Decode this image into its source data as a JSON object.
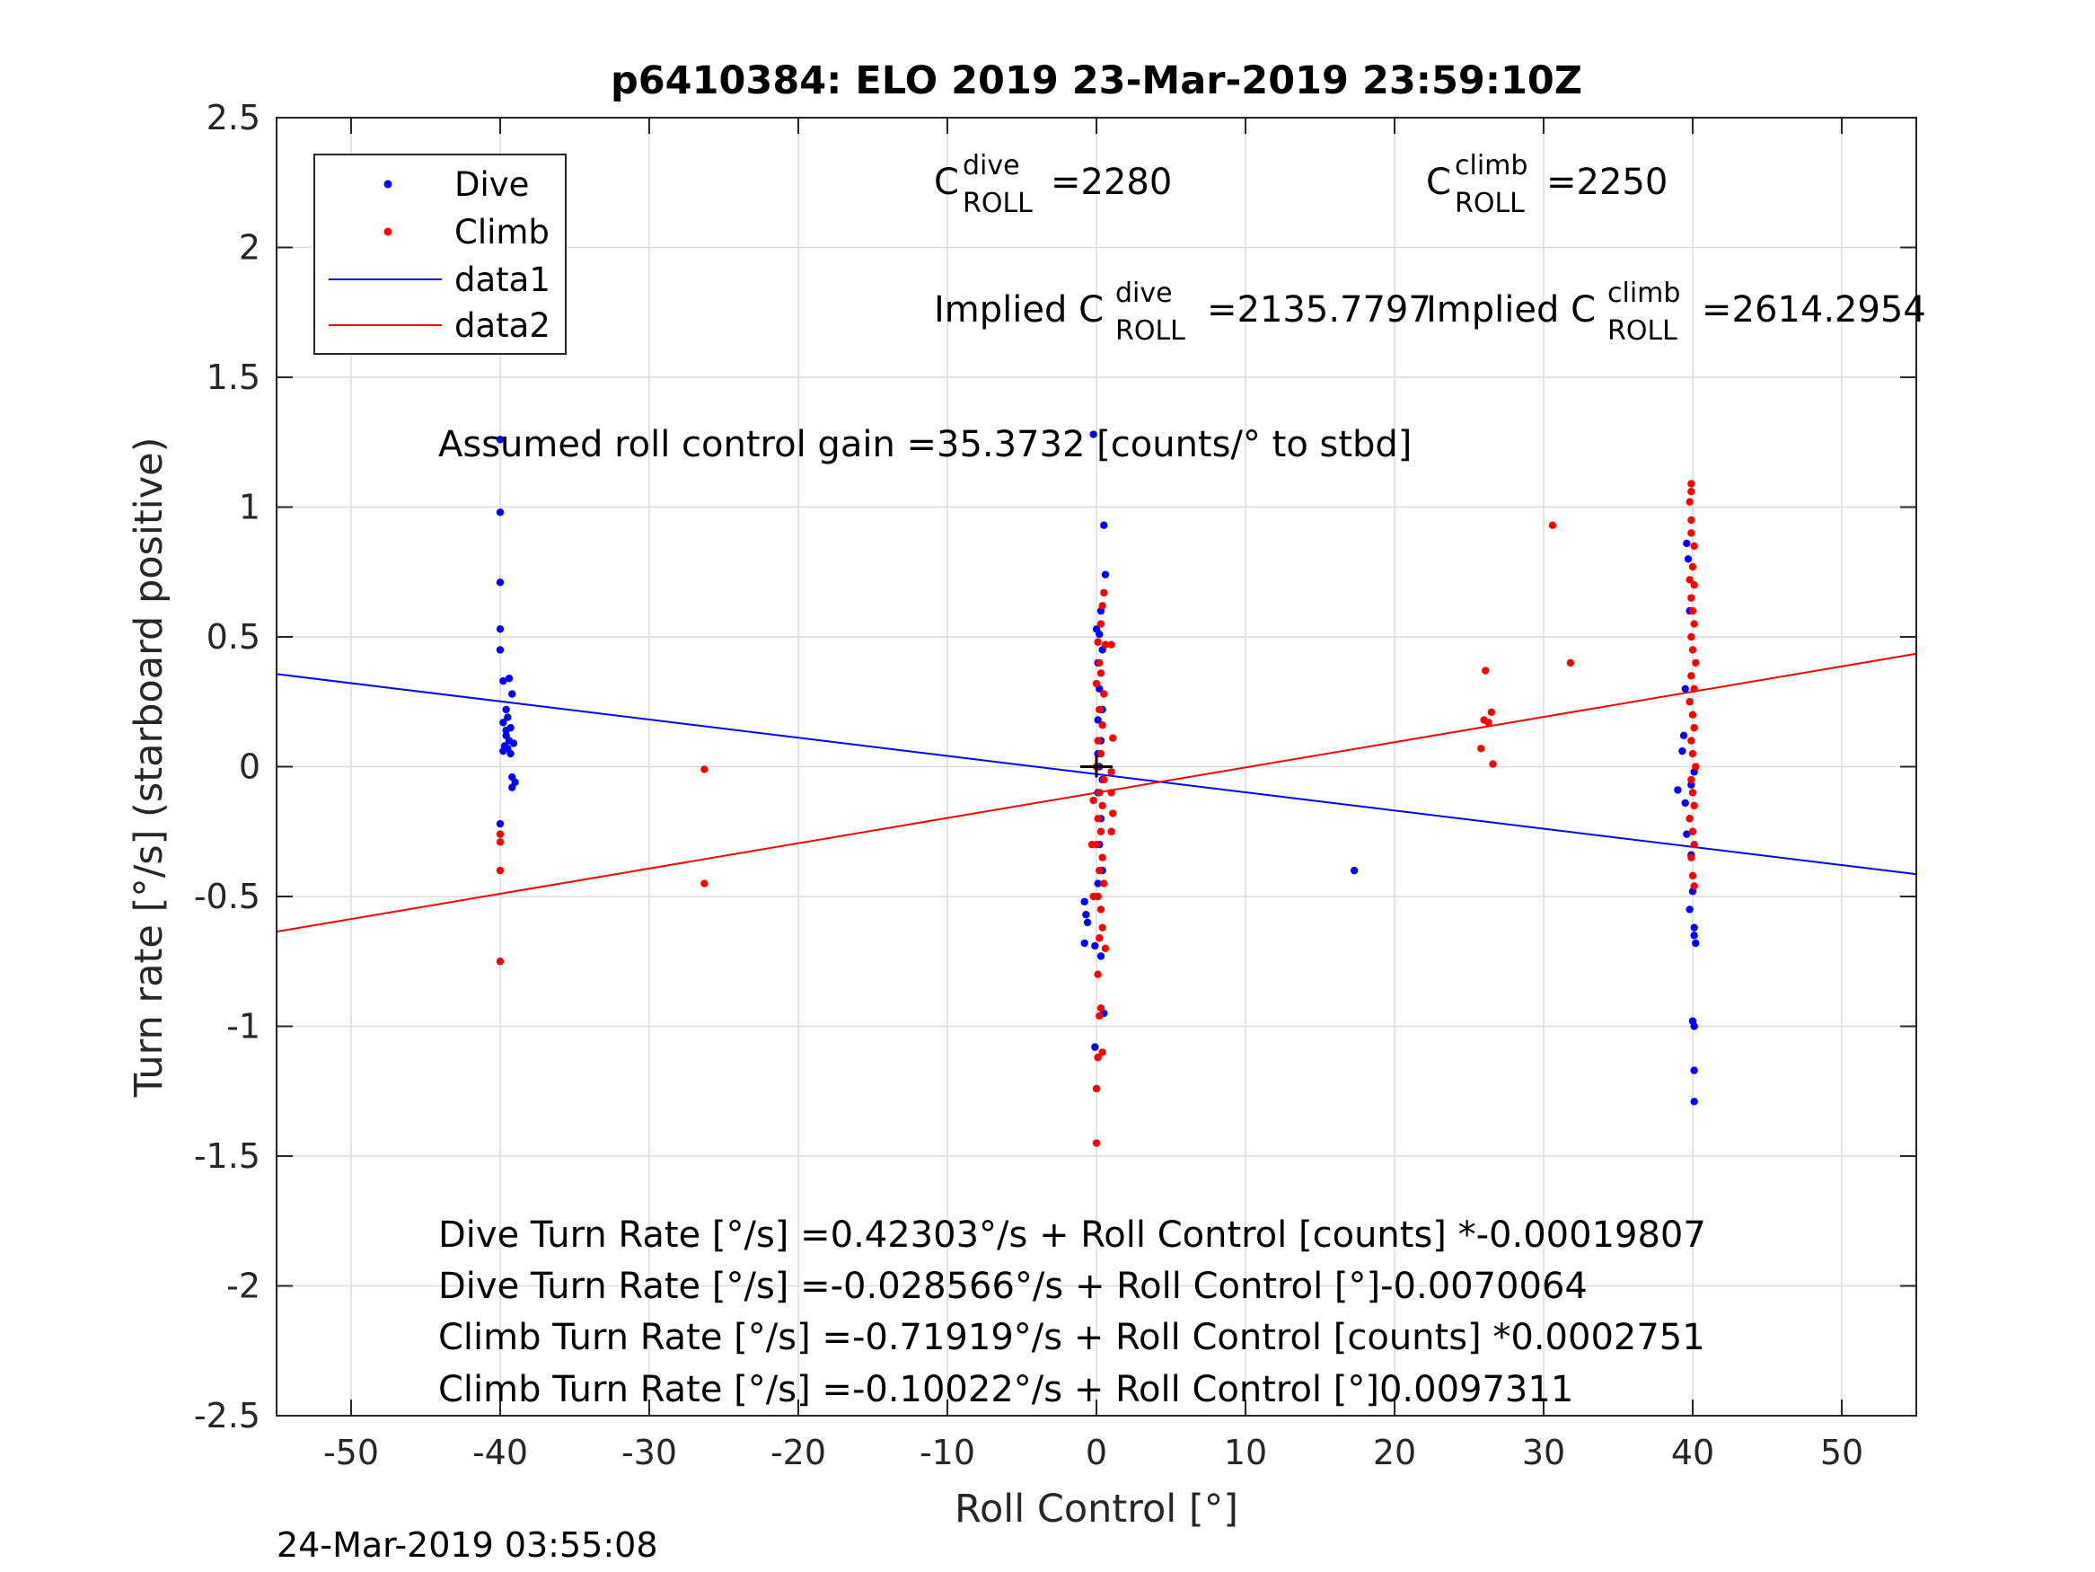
{
  "chart_data": {
    "type": "scatter",
    "title": "p6410384: ELO 2019 23-Mar-2019 23:59:10Z",
    "xlabel": "Roll Control [°]",
    "ylabel": "Turn rate [°/s] (starboard positive)",
    "xlim": [
      -55,
      55
    ],
    "ylim": [
      -2.5,
      2.5
    ],
    "xticks": [
      -50,
      -40,
      -30,
      -20,
      -10,
      0,
      10,
      20,
      30,
      40,
      50
    ],
    "yticks": [
      -2.5,
      -2,
      -1.5,
      -1,
      -0.5,
      0,
      0.5,
      1,
      1.5,
      2,
      2.5
    ],
    "grid": true,
    "legend_position": "top-left",
    "legend": [
      {
        "label": "Dive",
        "kind": "marker",
        "color": "#0000ff"
      },
      {
        "label": "Climb",
        "kind": "marker",
        "color": "#ff0000"
      },
      {
        "label": "data1",
        "kind": "line",
        "color": "#0000ff"
      },
      {
        "label": "data2",
        "kind": "line",
        "color": "#ff0000"
      }
    ],
    "series": [
      {
        "name": "Dive",
        "color": "#0000ff",
        "points": [
          [
            -40,
            1.26
          ],
          [
            -40,
            0.98
          ],
          [
            -40,
            0.71
          ],
          [
            -40,
            0.53
          ],
          [
            -40,
            0.45
          ],
          [
            -39.8,
            0.33
          ],
          [
            -39.4,
            0.34
          ],
          [
            -39.2,
            0.28
          ],
          [
            -39.6,
            0.22
          ],
          [
            -39.5,
            0.19
          ],
          [
            -39.8,
            0.17
          ],
          [
            -39.3,
            0.15
          ],
          [
            -39.6,
            0.12
          ],
          [
            -39.4,
            0.1
          ],
          [
            -39.1,
            0.09
          ],
          [
            -39.7,
            0.08
          ],
          [
            -39.5,
            0.07
          ],
          [
            -39.8,
            0.06
          ],
          [
            -39.3,
            0.05
          ],
          [
            -39.6,
            0.14
          ],
          [
            -39.2,
            -0.04
          ],
          [
            -39,
            -0.06
          ],
          [
            -39.2,
            -0.08
          ],
          [
            -40,
            -0.22
          ],
          [
            -0.8,
            -0.52
          ],
          [
            -0.7,
            -0.57
          ],
          [
            -0.6,
            -0.6
          ],
          [
            -0.8,
            -0.68
          ],
          [
            -0.1,
            -0.69
          ],
          [
            0.3,
            -0.73
          ],
          [
            0.5,
            -0.95
          ],
          [
            -0.1,
            -1.08
          ],
          [
            0.1,
            -1.12
          ],
          [
            0.5,
            0.93
          ],
          [
            0.6,
            0.74
          ],
          [
            0.3,
            0.6
          ],
          [
            0,
            0.53
          ],
          [
            0.2,
            0.51
          ],
          [
            0.4,
            0.45
          ],
          [
            0.1,
            0.4
          ],
          [
            0.2,
            0.3
          ],
          [
            0.4,
            0.22
          ],
          [
            0.1,
            0.18
          ],
          [
            0.3,
            0.1
          ],
          [
            0.1,
            0.05
          ],
          [
            0.2,
            0.0
          ],
          [
            0.4,
            -0.05
          ],
          [
            0.1,
            -0.1
          ],
          [
            0.3,
            -0.2
          ],
          [
            0.2,
            -0.3
          ],
          [
            0.4,
            -0.4
          ],
          [
            0.1,
            -0.45
          ],
          [
            -0.2,
            1.28
          ],
          [
            17.3,
            -0.4
          ],
          [
            39.6,
            0.86
          ],
          [
            39.7,
            0.8
          ],
          [
            39.8,
            0.6
          ],
          [
            39.5,
            0.3
          ],
          [
            39.4,
            0.12
          ],
          [
            39.3,
            0.06
          ],
          [
            39.0,
            -0.09
          ],
          [
            39.5,
            -0.14
          ],
          [
            39.8,
            -0.2
          ],
          [
            39.6,
            -0.26
          ],
          [
            39.9,
            -0.34
          ],
          [
            40.0,
            -0.48
          ],
          [
            39.8,
            -0.55
          ],
          [
            40.1,
            -0.62
          ],
          [
            40.1,
            -0.65
          ],
          [
            40.2,
            -0.68
          ],
          [
            40.0,
            -0.98
          ],
          [
            40.1,
            -1.0
          ],
          [
            40.1,
            -1.17
          ],
          [
            40.1,
            -1.29
          ],
          [
            39.9,
            -0.07
          ],
          [
            40.1,
            -0.02
          ]
        ]
      },
      {
        "name": "Climb",
        "color": "#ff0000",
        "points": [
          [
            -40,
            -0.26
          ],
          [
            -40,
            -0.29
          ],
          [
            -40,
            -0.4
          ],
          [
            -40,
            -0.75
          ],
          [
            -26.3,
            -0.01
          ],
          [
            -26.3,
            -0.45
          ],
          [
            0.5,
            0.67
          ],
          [
            0.4,
            0.62
          ],
          [
            0.3,
            0.55
          ],
          [
            0.1,
            0.48
          ],
          [
            0.6,
            0.47
          ],
          [
            0.2,
            0.4
          ],
          [
            0.3,
            0.36
          ],
          [
            0.0,
            0.32
          ],
          [
            0.5,
            0.28
          ],
          [
            0.2,
            0.22
          ],
          [
            0.4,
            0.16
          ],
          [
            0.1,
            0.1
          ],
          [
            0.3,
            0.05
          ],
          [
            0.0,
            0.0
          ],
          [
            0.5,
            -0.05
          ],
          [
            0.2,
            -0.1
          ],
          [
            0.4,
            -0.15
          ],
          [
            0.1,
            -0.2
          ],
          [
            0.3,
            -0.25
          ],
          [
            0.0,
            -0.3
          ],
          [
            0.4,
            -0.35
          ],
          [
            0.2,
            -0.4
          ],
          [
            0.5,
            -0.45
          ],
          [
            0.1,
            -0.5
          ],
          [
            0.3,
            -0.55
          ],
          [
            0.4,
            -0.62
          ],
          [
            0.2,
            -0.66
          ],
          [
            0.6,
            -0.7
          ],
          [
            0.1,
            -0.8
          ],
          [
            0.3,
            -0.93
          ],
          [
            0.2,
            -0.96
          ],
          [
            0.4,
            -1.1
          ],
          [
            0.1,
            -1.12
          ],
          [
            0.0,
            -1.24
          ],
          [
            0.0,
            -1.45
          ],
          [
            1.0,
            0.47
          ],
          [
            1.1,
            0.11
          ],
          [
            1.0,
            -0.02
          ],
          [
            1.0,
            -0.1
          ],
          [
            1.1,
            -0.18
          ],
          [
            1.0,
            -0.25
          ],
          [
            -0.2,
            -0.13
          ],
          [
            -0.3,
            -0.3
          ],
          [
            -0.2,
            -0.5
          ],
          [
            26.1,
            0.37
          ],
          [
            26.0,
            0.18
          ],
          [
            26.5,
            0.21
          ],
          [
            26.3,
            0.17
          ],
          [
            25.8,
            0.07
          ],
          [
            26.6,
            0.01
          ],
          [
            30.6,
            0.93
          ],
          [
            31.8,
            0.4
          ],
          [
            39.9,
            1.09
          ],
          [
            39.9,
            1.06
          ],
          [
            39.8,
            1.02
          ],
          [
            39.9,
            0.95
          ],
          [
            40.1,
            0.85
          ],
          [
            40.0,
            0.77
          ],
          [
            39.8,
            0.72
          ],
          [
            39.9,
            0.65
          ],
          [
            40.0,
            0.6
          ],
          [
            40.1,
            0.55
          ],
          [
            39.9,
            0.5
          ],
          [
            40.0,
            0.45
          ],
          [
            40.2,
            0.4
          ],
          [
            39.9,
            0.35
          ],
          [
            40.1,
            0.3
          ],
          [
            39.8,
            0.25
          ],
          [
            40.0,
            0.2
          ],
          [
            40.1,
            0.15
          ],
          [
            39.9,
            0.1
          ],
          [
            40.0,
            0.05
          ],
          [
            40.2,
            0.0
          ],
          [
            39.9,
            -0.05
          ],
          [
            40.0,
            -0.1
          ],
          [
            40.1,
            -0.15
          ],
          [
            39.8,
            -0.2
          ],
          [
            40.0,
            -0.25
          ],
          [
            40.1,
            -0.3
          ],
          [
            39.9,
            -0.35
          ],
          [
            40.0,
            -0.42
          ],
          [
            40.1,
            -0.46
          ],
          [
            39.9,
            0.9
          ],
          [
            40.1,
            0.7
          ]
        ]
      },
      {
        "name": "data1",
        "kind": "line",
        "color": "#0000ff",
        "x": [
          -55,
          55
        ],
        "y": [
          0.3567,
          -0.414
        ]
      },
      {
        "name": "data2",
        "kind": "line",
        "color": "#ff0000",
        "x": [
          -55,
          55
        ],
        "y": [
          -0.6354,
          0.435
        ]
      }
    ],
    "marker_origin": [
      0,
      0
    ],
    "annotations": {
      "c_dive": {
        "base": "C",
        "sup": "dive",
        "sub": "ROLL",
        "value": "=2280"
      },
      "c_climb": {
        "base": "C",
        "sup": "climb",
        "sub": "ROLL",
        "value": "=2250"
      },
      "implied_dive": {
        "prefix": "Implied C",
        "sup": "dive",
        "sub": "ROLL",
        "value": "=2135.7797"
      },
      "implied_climb": {
        "prefix": "Implied C",
        "sup": "climb",
        "sub": "ROLL",
        "value": "=2614.2954"
      },
      "gain": "Assumed roll control gain =35.3732 [counts/° to stbd]",
      "fits": [
        "Dive Turn Rate [°/s] =0.42303°/s + Roll Control [counts] *-0.00019807",
        "Dive Turn Rate [°/s] =-0.028566°/s + Roll Control [°]-0.0070064",
        "Climb Turn Rate [°/s] =-0.71919°/s + Roll Control [counts] *0.0002751",
        "Climb Turn Rate [°/s] =-0.10022°/s + Roll Control [°]0.0097311"
      ]
    },
    "timestamp": "24-Mar-2019 03:55:08"
  }
}
